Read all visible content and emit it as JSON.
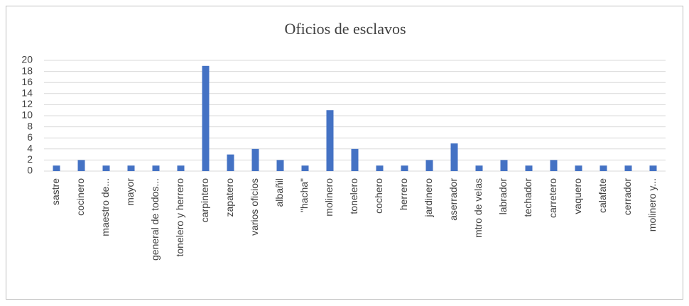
{
  "chart_data": {
    "type": "bar",
    "title": "Oficios de esclavos",
    "categories": [
      "sastre",
      "cocinero",
      "maestro de...",
      "mayor",
      "general de todos...",
      "tonelero y herrero",
      "carpintero",
      "zapatero",
      "varios oficios",
      "albañil",
      "\"hacha\"",
      "molinero",
      "tonelero",
      "cochero",
      "herrero",
      "jardinero",
      "aserrador",
      "mtro de velas",
      "labrador",
      "techador",
      "carretero",
      "vaquero",
      "calafate",
      "cerrador",
      "molinero y..."
    ],
    "values": [
      1,
      2,
      1,
      1,
      1,
      1,
      19,
      3,
      4,
      2,
      1,
      11,
      4,
      1,
      1,
      2,
      5,
      1,
      2,
      1,
      2,
      1,
      1,
      1,
      1
    ],
    "color": "#4472c4",
    "ylim": [
      0,
      20
    ],
    "yticks": [
      0,
      2,
      4,
      6,
      8,
      10,
      12,
      14,
      16,
      18,
      20
    ],
    "grid": true
  }
}
